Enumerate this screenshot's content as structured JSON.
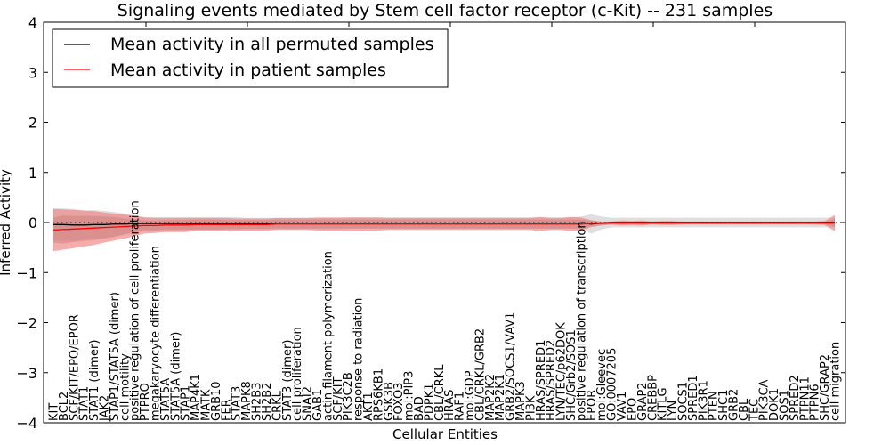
{
  "chart_data": {
    "type": "line",
    "title": "Signaling events mediated by Stem cell factor receptor (c-Kit) -- 231 samples",
    "xlabel": "Cellular Entities",
    "ylabel": "Inferred Activity",
    "ylim": [
      -4,
      4
    ],
    "yticks": [
      -4,
      -3,
      -2,
      -1,
      0,
      1,
      2,
      3,
      4
    ],
    "ytick_labels": [
      "−4",
      "−3",
      "−2",
      "−1",
      "0",
      "1",
      "2",
      "3",
      "4"
    ],
    "grid": false,
    "zero_line": "dotted",
    "legend": {
      "placement": "top-left",
      "entries": [
        {
          "label": "Mean activity in all permuted samples",
          "color": "#000000"
        },
        {
          "label": "Mean activity in patient samples",
          "color": "#ff0000"
        }
      ]
    },
    "categories": [
      "KIT",
      "BCL2",
      "SCF/KIT/EPO/EPOR",
      "STAT1",
      "STAT1 (dimer)",
      "JAK2",
      "STAP1/STAT5A (dimer)",
      "cell motility",
      "positive regulation of cell proliferation",
      "PTPRO",
      "megakaryocyte differentiation",
      "STAT5A",
      "STAT5A (dimer)",
      "STAP1",
      "MAP4K1",
      "MATK",
      "GRB10",
      "FER",
      "STAT3",
      "MAPK8",
      "SH2B3",
      "SH2B2",
      "CRKL",
      "STAT3 (dimer)",
      "cell proliferation",
      "SNAI2",
      "GAB1",
      "actin filament polymerization",
      "SCF/KIT",
      "PIK3C2B",
      "response to radiation",
      "AKT1",
      "RPS6KB1",
      "GSK3B",
      "FOXO3",
      "mol:PIP3",
      "BAD",
      "PDPK1",
      "CBL/CRKL",
      "HRAS",
      "RAF1",
      "mol:GDP",
      "CBL/CRKL/GRB2",
      "MAP2K2",
      "MAP2K1",
      "GRB2/SOCS1/VAV1",
      "MAPK3",
      "PI3K",
      "HRAS/SPRED1",
      "HRAS/SPRED2",
      "LYN/TEC/p62DOK",
      "SHC/Grb2/SOS1",
      "positive regulation of transcription",
      "EPOR",
      "mol:Gleevec",
      "GO:0007205",
      "VAV1",
      "EPO",
      "GRAP2",
      "CREBBP",
      "KITLG",
      "LYN",
      "SOCS1",
      "SPRED1",
      "PIK3R1",
      "PTEN",
      "SHC1",
      "GRB2",
      "CBL",
      "TEC",
      "PIK3CA",
      "DOK1",
      "SOS1",
      "SPRED2",
      "PTPN11",
      "PTPN6",
      "SHC/GRAP2",
      "cell migration"
    ],
    "series": [
      {
        "name": "Mean activity in all permuted samples",
        "color": "#000000",
        "values": [
          -0.04,
          -0.04,
          -0.05,
          -0.05,
          -0.04,
          -0.04,
          -0.03,
          -0.03,
          -0.02,
          -0.02,
          -0.02,
          -0.02,
          -0.02,
          -0.02,
          -0.02,
          -0.02,
          -0.02,
          -0.02,
          -0.02,
          -0.02,
          -0.02,
          -0.02,
          -0.02,
          -0.02,
          -0.02,
          -0.02,
          -0.02,
          -0.02,
          -0.02,
          -0.01,
          -0.01,
          -0.01,
          -0.01,
          -0.01,
          -0.01,
          -0.01,
          -0.01,
          -0.01,
          -0.01,
          -0.01,
          -0.01,
          -0.01,
          -0.01,
          -0.01,
          -0.01,
          -0.01,
          -0.01,
          -0.01,
          -0.01,
          -0.01,
          -0.01,
          -0.01,
          -0.01,
          -0.03,
          -0.01,
          0.0,
          0.0,
          0.0,
          0.0,
          0.0,
          0.0,
          0.0,
          0.0,
          0.0,
          0.0,
          0.0,
          0.0,
          0.0,
          0.0,
          0.0,
          0.0,
          0.0,
          0.0,
          0.0,
          0.0,
          0.0,
          0.0,
          0.0
        ],
        "band_sd": [
          0.2,
          0.2,
          0.2,
          0.18,
          0.18,
          0.17,
          0.15,
          0.13,
          0.1,
          0.08,
          0.08,
          0.08,
          0.08,
          0.08,
          0.08,
          0.08,
          0.08,
          0.08,
          0.08,
          0.07,
          0.07,
          0.07,
          0.07,
          0.07,
          0.07,
          0.07,
          0.07,
          0.07,
          0.07,
          0.07,
          0.07,
          0.07,
          0.07,
          0.07,
          0.07,
          0.07,
          0.07,
          0.07,
          0.07,
          0.07,
          0.07,
          0.07,
          0.07,
          0.07,
          0.07,
          0.07,
          0.07,
          0.07,
          0.07,
          0.07,
          0.07,
          0.07,
          0.08,
          0.12,
          0.08,
          0.06,
          0.06,
          0.06,
          0.06,
          0.06,
          0.06,
          0.06,
          0.06,
          0.06,
          0.06,
          0.06,
          0.06,
          0.06,
          0.06,
          0.06,
          0.06,
          0.06,
          0.06,
          0.06,
          0.06,
          0.06,
          0.06,
          0.06
        ]
      },
      {
        "name": "Mean activity in patient samples",
        "color": "#ff0000",
        "values": [
          -0.15,
          -0.14,
          -0.13,
          -0.12,
          -0.11,
          -0.1,
          -0.09,
          -0.08,
          -0.07,
          -0.06,
          -0.06,
          -0.05,
          -0.05,
          -0.05,
          -0.04,
          -0.04,
          -0.04,
          -0.04,
          -0.04,
          -0.04,
          -0.04,
          -0.04,
          -0.03,
          -0.03,
          -0.03,
          -0.03,
          -0.03,
          -0.03,
          -0.03,
          -0.03,
          -0.03,
          -0.03,
          -0.03,
          -0.03,
          -0.03,
          -0.03,
          -0.03,
          -0.03,
          -0.03,
          -0.03,
          -0.03,
          -0.03,
          -0.03,
          -0.03,
          -0.03,
          -0.03,
          -0.03,
          -0.03,
          -0.03,
          -0.03,
          -0.03,
          -0.03,
          -0.03,
          -0.02,
          -0.02,
          -0.01,
          -0.01,
          -0.01,
          -0.01,
          -0.01,
          -0.01,
          -0.01,
          -0.01,
          -0.01,
          -0.01,
          -0.01,
          -0.01,
          -0.01,
          -0.01,
          -0.01,
          -0.01,
          -0.01,
          -0.01,
          -0.01,
          -0.01,
          -0.01,
          -0.01,
          -0.01
        ],
        "band_inner": [
          0.25,
          0.28,
          0.26,
          0.25,
          0.24,
          0.22,
          0.2,
          0.16,
          0.14,
          0.1,
          0.1,
          0.1,
          0.1,
          0.1,
          0.1,
          0.1,
          0.1,
          0.09,
          0.09,
          0.09,
          0.09,
          0.09,
          0.09,
          0.09,
          0.09,
          0.09,
          0.09,
          0.09,
          0.09,
          0.09,
          0.09,
          0.09,
          0.09,
          0.09,
          0.09,
          0.09,
          0.09,
          0.09,
          0.09,
          0.09,
          0.09,
          0.09,
          0.09,
          0.09,
          0.09,
          0.09,
          0.09,
          0.09,
          0.09,
          0.09,
          0.09,
          0.09,
          0.09,
          0.05,
          0.03,
          0.02,
          0.02,
          0.02,
          0.03,
          0.02,
          0.02,
          0.02,
          0.02,
          0.02,
          0.02,
          0.02,
          0.02,
          0.02,
          0.02,
          0.02,
          0.02,
          0.02,
          0.02,
          0.02,
          0.02,
          0.02,
          0.02,
          0.08
        ],
        "band_outer": [
          0.42,
          0.4,
          0.38,
          0.36,
          0.34,
          0.3,
          0.27,
          0.24,
          0.2,
          0.16,
          0.15,
          0.14,
          0.14,
          0.14,
          0.13,
          0.13,
          0.13,
          0.13,
          0.12,
          0.12,
          0.12,
          0.12,
          0.12,
          0.12,
          0.12,
          0.12,
          0.13,
          0.13,
          0.13,
          0.13,
          0.13,
          0.13,
          0.13,
          0.12,
          0.12,
          0.12,
          0.12,
          0.12,
          0.12,
          0.12,
          0.12,
          0.12,
          0.12,
          0.12,
          0.12,
          0.12,
          0.12,
          0.12,
          0.14,
          0.12,
          0.12,
          0.14,
          0.13,
          0.07,
          0.04,
          0.03,
          0.05,
          0.04,
          0.05,
          0.03,
          0.04,
          0.04,
          0.03,
          0.03,
          0.03,
          0.03,
          0.03,
          0.03,
          0.03,
          0.03,
          0.03,
          0.03,
          0.03,
          0.03,
          0.03,
          0.03,
          0.04,
          0.16
        ]
      }
    ]
  }
}
